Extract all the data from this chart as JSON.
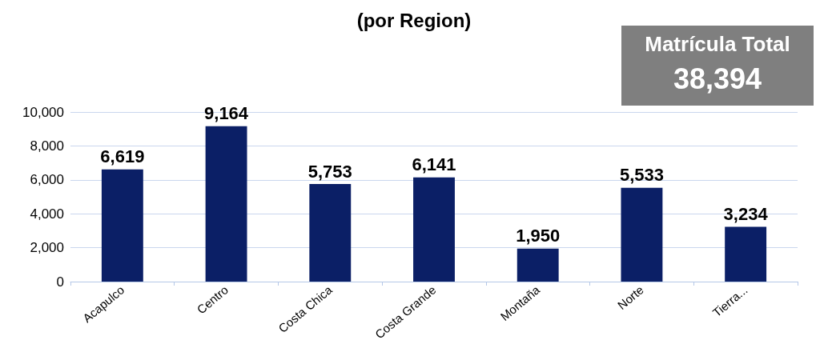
{
  "chart_data": {
    "type": "bar",
    "title": "(por Region)",
    "annotations": [
      "Matrícula Total",
      "38,394"
    ],
    "categories": [
      "Acapulco",
      "Centro",
      "Costa Chica",
      "Costa Grande",
      "Montaña",
      "Norte",
      "Tierra..."
    ],
    "values": [
      6619,
      9164,
      5753,
      6141,
      1950,
      5533,
      3234
    ],
    "value_labels": [
      "6,619",
      "9,164",
      "5,753",
      "6,141",
      "1,950",
      "5,533",
      "3,234"
    ],
    "color": "#0b1f66",
    "ylim": [
      0,
      10000
    ],
    "yticks": [
      0,
      {
        "value": 2000,
        "label": "2,000"
      },
      {
        "value": 4000,
        "label": "4,000"
      },
      {
        "value": 6000,
        "label": "6,000"
      },
      {
        "value": 8000,
        "label": "8,000"
      },
      {
        "value": 10000,
        "label": "10,000"
      }
    ],
    "grid": "y"
  }
}
